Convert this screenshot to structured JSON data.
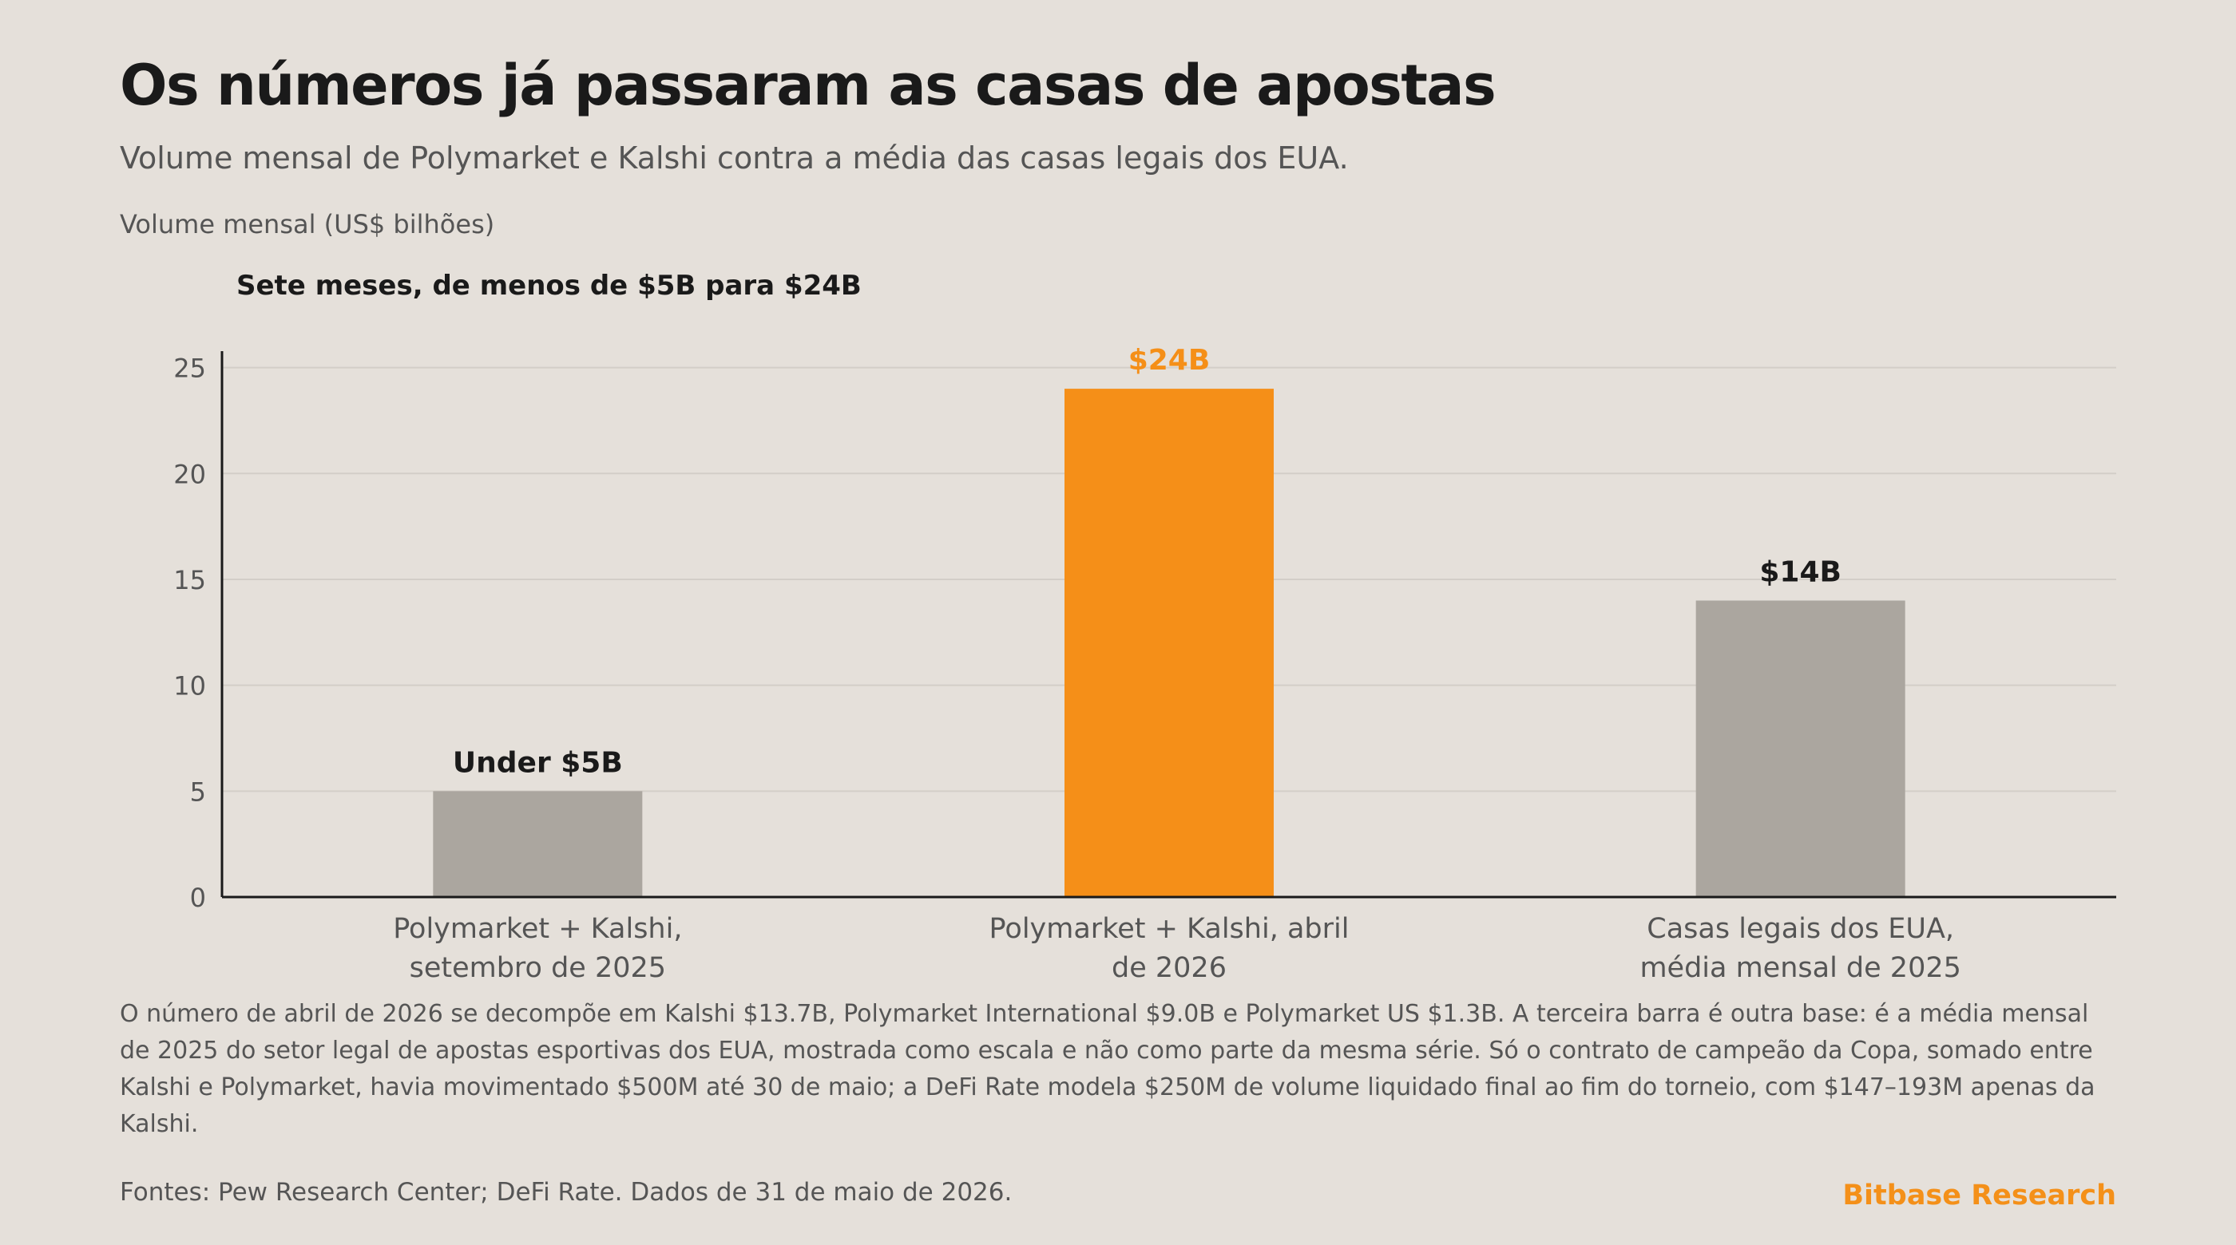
{
  "header": {
    "title": "Os números já passaram as casas de apostas",
    "subtitle": "Volume mensal de Polymarket e Kalshi contra a média das casas legais dos EUA."
  },
  "chart_data": {
    "type": "bar",
    "ylabel": "Volume mensal (US$ bilhões)",
    "annotation": "Sete meses, de menos de $5B para $24B",
    "categories": [
      [
        "Polymarket + Kalshi,",
        "setembro de 2025"
      ],
      [
        "Polymarket + Kalshi, abril",
        "de 2026"
      ],
      [
        "Casas legais dos EUA,",
        "média mensal de 2025"
      ]
    ],
    "values": [
      5,
      24,
      14
    ],
    "data_labels": [
      "Under $5B",
      "$24B",
      "$14B"
    ],
    "ylim": [
      0,
      25.7
    ],
    "yticks": [
      0,
      5,
      10,
      15,
      20,
      25
    ],
    "grid": true,
    "colors": {
      "highlight": "#f58f18",
      "base": "#aba69f",
      "axis": "#1a1a1a",
      "grid": "#d3cec8",
      "tick_text": "#555555"
    },
    "highlight_index": 1
  },
  "footer": {
    "note": "O número de abril de 2026 se decompõe em Kalshi $13.7B, Polymarket International $9.0B e Polymarket US $1.3B. A terceira barra é outra base: é a média mensal de 2025 do setor legal de apostas esportivas dos EUA, mostrada como escala e não como parte da mesma série. Só o contrato de campeão da Copa, somado entre Kalshi e Polymarket, havia movimentado $500M até 30 de maio; a DeFi Rate modela $250M de volume liquidado final ao fim do torneio, com $147–193M apenas da Kalshi.",
    "sources": "Fontes: Pew Research Center; DeFi Rate. Dados de 31 de maio de 2026.",
    "brand": "Bitbase Research"
  }
}
